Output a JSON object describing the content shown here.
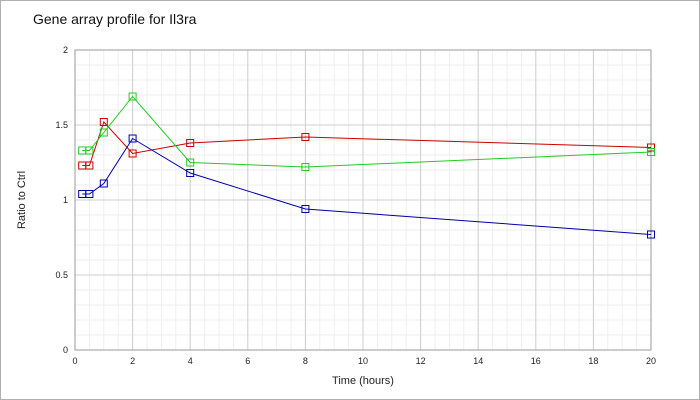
{
  "chart_data": {
    "type": "line",
    "title": "Gene array profile for Il3ra",
    "xlabel": "Time (hours)",
    "ylabel": "Ratio to Ctrl",
    "xlim": [
      0,
      20
    ],
    "ylim": [
      0,
      2
    ],
    "xticks": [
      0,
      2,
      4,
      6,
      8,
      10,
      12,
      14,
      16,
      18,
      20
    ],
    "yticks": [
      0,
      0.5,
      1,
      1.5,
      2
    ],
    "ytick_labels": [
      "0",
      "0.5",
      "1",
      "1.5",
      "2"
    ],
    "grid": true,
    "legend": "none",
    "series": [
      {
        "color": "#cc0000",
        "x": [
          0.25,
          0.5,
          1,
          2,
          4,
          8,
          20
        ],
        "y": [
          1.23,
          1.23,
          1.52,
          1.31,
          1.38,
          1.42,
          1.35
        ]
      },
      {
        "color": "#22cc22",
        "x": [
          0.25,
          0.5,
          1,
          2,
          4,
          8,
          20
        ],
        "y": [
          1.33,
          1.33,
          1.45,
          1.69,
          1.25,
          1.22,
          1.32
        ]
      },
      {
        "color": "#0000aa",
        "x": [
          0.25,
          0.5,
          1,
          2,
          4,
          8,
          20
        ],
        "y": [
          1.04,
          1.04,
          1.11,
          1.41,
          1.18,
          0.94,
          0.77
        ]
      }
    ]
  }
}
